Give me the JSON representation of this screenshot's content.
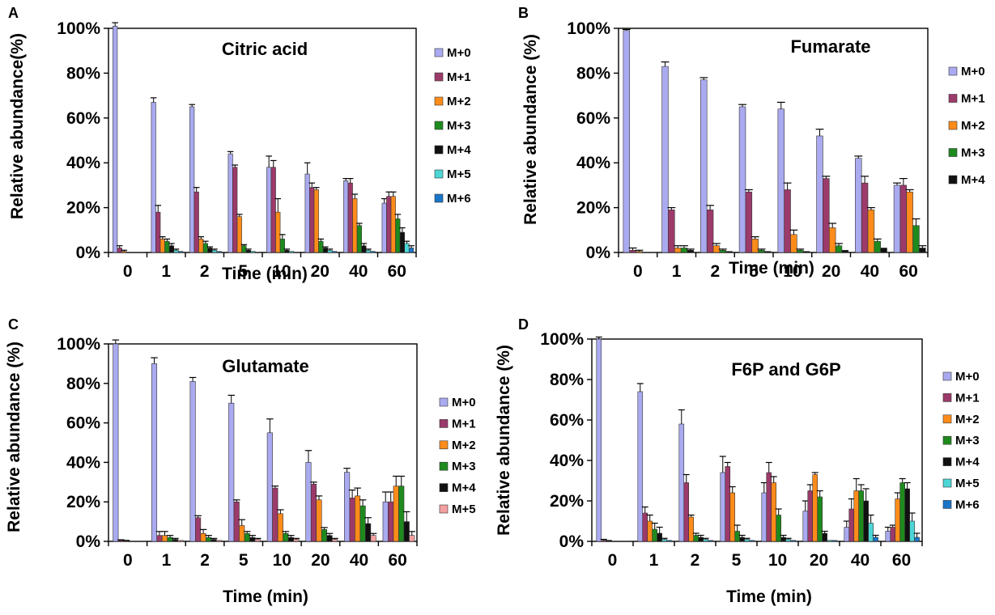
{
  "series_colors": {
    "M+0": "#aaaaf0",
    "M+1": "#9c3a6a",
    "M+2": "#ff8c1a",
    "M+3": "#1e8a1e",
    "M+4": "#111111",
    "M+5": "#4dd6d6",
    "M+6": "#1a75c8"
  },
  "M5_color_glutamate": "#f5a0a0",
  "chart_data": [
    {
      "panel": "A",
      "type": "bar",
      "title": "Citric acid",
      "xlabel": "Time (min)",
      "ylabel": "Relative abundance(%)",
      "ylim": [
        0,
        100
      ],
      "yticks": [
        "0%",
        "20%",
        "40%",
        "60%",
        "80%",
        "100%"
      ],
      "categories": [
        "0",
        "1",
        "2",
        "5",
        "10",
        "20",
        "40",
        "60"
      ],
      "series": [
        {
          "name": "M+0",
          "values": [
            101,
            67,
            65,
            44,
            38,
            35,
            32,
            22
          ]
        },
        {
          "name": "M+1",
          "values": [
            2,
            18,
            27,
            38,
            38,
            29,
            31,
            25
          ]
        },
        {
          "name": "M+2",
          "values": [
            0.5,
            6,
            6,
            16,
            18,
            28,
            24,
            25
          ]
        },
        {
          "name": "M+3",
          "values": [
            0,
            5,
            4,
            3,
            6,
            5,
            12,
            15
          ]
        },
        {
          "name": "M+4",
          "values": [
            0,
            3,
            2,
            1,
            1,
            2,
            3,
            9
          ]
        },
        {
          "name": "M+5",
          "values": [
            0,
            1,
            1,
            0.5,
            0.5,
            1,
            1,
            4
          ]
        },
        {
          "name": "M+6",
          "values": [
            0,
            0.5,
            0.5,
            0,
            0,
            0.5,
            0.5,
            2
          ]
        }
      ],
      "errors": [
        [
          1.5,
          2,
          1,
          1,
          5,
          5,
          1,
          2
        ],
        [
          1,
          3,
          2,
          1,
          3,
          2,
          2,
          2
        ],
        [
          0.5,
          1,
          1,
          1,
          6,
          1,
          2,
          2
        ],
        [
          0,
          1,
          1,
          0.5,
          2,
          1,
          1,
          2
        ],
        [
          0,
          1,
          0.5,
          0.5,
          0.5,
          0.5,
          1,
          2
        ],
        [
          0,
          0.5,
          0.5,
          0,
          0,
          0.5,
          0.5,
          1
        ],
        [
          0,
          0,
          0,
          0,
          0,
          0,
          0,
          1
        ]
      ]
    },
    {
      "panel": "B",
      "type": "bar",
      "title": "Fumarate",
      "xlabel": "Time (min)",
      "ylabel": "Relative abundance (%)",
      "ylim": [
        0,
        100
      ],
      "yticks": [
        "0%",
        "20%",
        "40%",
        "60%",
        "80%",
        "100%"
      ],
      "categories": [
        "0",
        "1",
        "2",
        "5",
        "10",
        "20",
        "40",
        "60"
      ],
      "series": [
        {
          "name": "M+0",
          "values": [
            99,
            83,
            77,
            65,
            64,
            52,
            42,
            30
          ]
        },
        {
          "name": "M+1",
          "values": [
            1,
            19,
            19,
            27,
            28,
            33,
            31,
            30
          ]
        },
        {
          "name": "M+2",
          "values": [
            0.5,
            2,
            3,
            6,
            8,
            11,
            19,
            27
          ]
        },
        {
          "name": "M+3",
          "values": [
            0,
            2,
            1,
            1,
            1,
            3,
            5,
            12
          ]
        },
        {
          "name": "M+4",
          "values": [
            0,
            1,
            0.5,
            0.5,
            0.5,
            1,
            2,
            2
          ]
        }
      ],
      "errors": [
        [
          0.5,
          2,
          1,
          1,
          3,
          3,
          1,
          1
        ],
        [
          1,
          1,
          2,
          1,
          3,
          1,
          3,
          3
        ],
        [
          0.5,
          1,
          1,
          1,
          2,
          2,
          1,
          1
        ],
        [
          0,
          1,
          0.5,
          0.5,
          0.5,
          1,
          1,
          3
        ],
        [
          0,
          0.5,
          0,
          0,
          0,
          0,
          0,
          1
        ]
      ]
    },
    {
      "panel": "C",
      "type": "bar",
      "title": "Glutamate",
      "xlabel": "Time (min)",
      "ylabel": "Relative abundance (%)",
      "ylim": [
        0,
        100
      ],
      "yticks": [
        "0%",
        "20%",
        "40%",
        "60%",
        "80%",
        "100%"
      ],
      "categories": [
        "0",
        "1",
        "2",
        "5",
        "10",
        "20",
        "40",
        "60"
      ],
      "series": [
        {
          "name": "M+0",
          "values": [
            100,
            90,
            81,
            70,
            55,
            40,
            35,
            20
          ]
        },
        {
          "name": "M+1",
          "values": [
            0.5,
            3,
            12,
            20,
            27,
            29,
            22,
            20
          ]
        },
        {
          "name": "M+2",
          "values": [
            0.3,
            3,
            4,
            8,
            14,
            21,
            23,
            28
          ]
        },
        {
          "name": "M+3",
          "values": [
            0,
            2,
            2,
            4,
            4,
            6,
            18,
            28
          ]
        },
        {
          "name": "M+4",
          "values": [
            0,
            1,
            1,
            2,
            2,
            3,
            9,
            10
          ]
        },
        {
          "name": "M+5",
          "values": [
            0,
            0.5,
            0.5,
            1,
            1,
            1,
            3,
            3
          ]
        }
      ],
      "errors": [
        [
          2,
          3,
          2,
          4,
          7,
          6,
          2,
          5
        ],
        [
          0.3,
          2,
          1,
          1,
          1,
          1,
          4,
          5
        ],
        [
          0.2,
          2,
          2,
          3,
          2,
          2,
          4,
          5
        ],
        [
          0,
          1,
          1,
          1,
          1,
          1,
          3,
          5
        ],
        [
          0,
          0.5,
          0.5,
          1,
          1,
          1,
          3,
          5
        ],
        [
          0,
          0,
          0,
          0.5,
          0.5,
          0.5,
          1,
          2
        ]
      ]
    },
    {
      "panel": "D",
      "type": "bar",
      "title": "F6P and G6P",
      "xlabel": "Time (min)",
      "ylabel": "Relative abundance (%)",
      "ylim": [
        0,
        100
      ],
      "yticks": [
        "0%",
        "20%",
        "40%",
        "60%",
        "80%",
        "100%"
      ],
      "categories": [
        "0",
        "1",
        "2",
        "5",
        "10",
        "20",
        "40",
        "60"
      ],
      "series": [
        {
          "name": "M+0",
          "values": [
            100,
            74,
            58,
            34,
            24,
            15,
            7,
            5
          ]
        },
        {
          "name": "M+1",
          "values": [
            0.5,
            14,
            29,
            37,
            34,
            25,
            16,
            7
          ]
        },
        {
          "name": "M+2",
          "values": [
            0.2,
            10,
            12,
            24,
            29,
            33,
            25,
            21
          ]
        },
        {
          "name": "M+3",
          "values": [
            0,
            6,
            3,
            5,
            13,
            22,
            25,
            29
          ]
        },
        {
          "name": "M+4",
          "values": [
            0,
            4,
            2,
            2,
            2,
            4,
            20,
            26
          ]
        },
        {
          "name": "M+5",
          "values": [
            0,
            1,
            1,
            1,
            1,
            0.5,
            9,
            10
          ]
        },
        {
          "name": "M+6",
          "values": [
            0,
            0.5,
            0.5,
            0.5,
            0.5,
            0.5,
            2,
            2
          ]
        }
      ],
      "errors": [
        [
          1,
          4,
          7,
          8,
          5,
          5,
          3,
          2
        ],
        [
          0.5,
          3,
          4,
          2,
          5,
          3,
          5,
          1
        ],
        [
          0.2,
          3,
          1,
          3,
          3,
          1,
          6,
          3
        ],
        [
          0,
          3,
          1,
          3,
          3,
          3,
          3,
          2
        ],
        [
          0,
          3,
          1,
          1,
          1,
          1,
          6,
          3
        ],
        [
          0,
          0.5,
          0.5,
          0.5,
          0.5,
          0,
          4,
          4
        ],
        [
          0,
          0,
          0,
          0,
          0,
          0,
          1,
          2
        ]
      ]
    }
  ]
}
